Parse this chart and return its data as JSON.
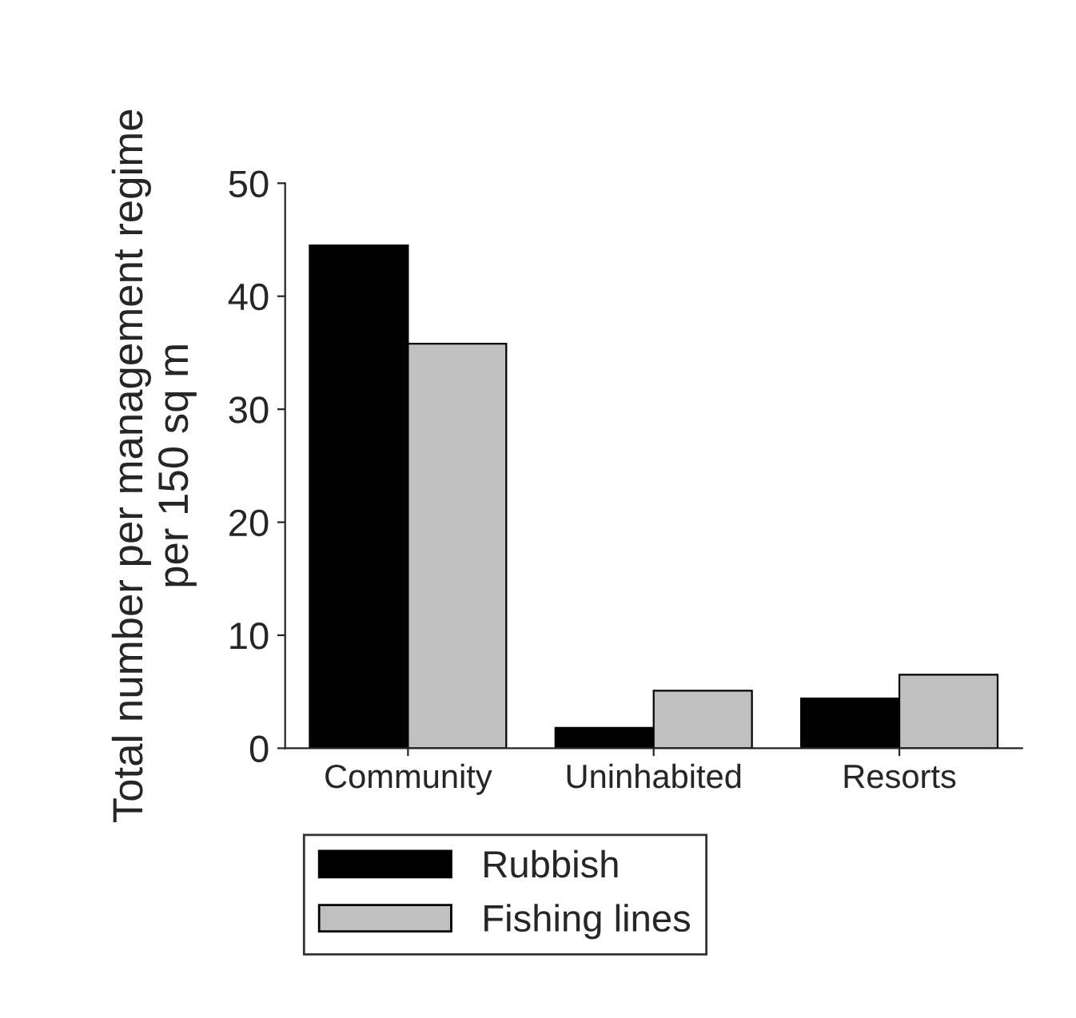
{
  "chart_data": {
    "type": "bar",
    "ylabel": "Total number per management regime\nper 150 sq m",
    "categories": [
      "Community",
      "Uninhabited",
      "Resorts"
    ],
    "series": [
      {
        "name": "Rubbish",
        "color": "#000000",
        "values": [
          44.5,
          1.8,
          4.4
        ]
      },
      {
        "name": "Fishing lines",
        "color": "#c0c0c0",
        "values": [
          35.8,
          5.1,
          6.5
        ]
      }
    ],
    "ylim": [
      0,
      50
    ],
    "yticks": [
      0,
      10,
      20,
      30,
      40,
      50
    ],
    "grid": false,
    "legend": "bottom"
  }
}
